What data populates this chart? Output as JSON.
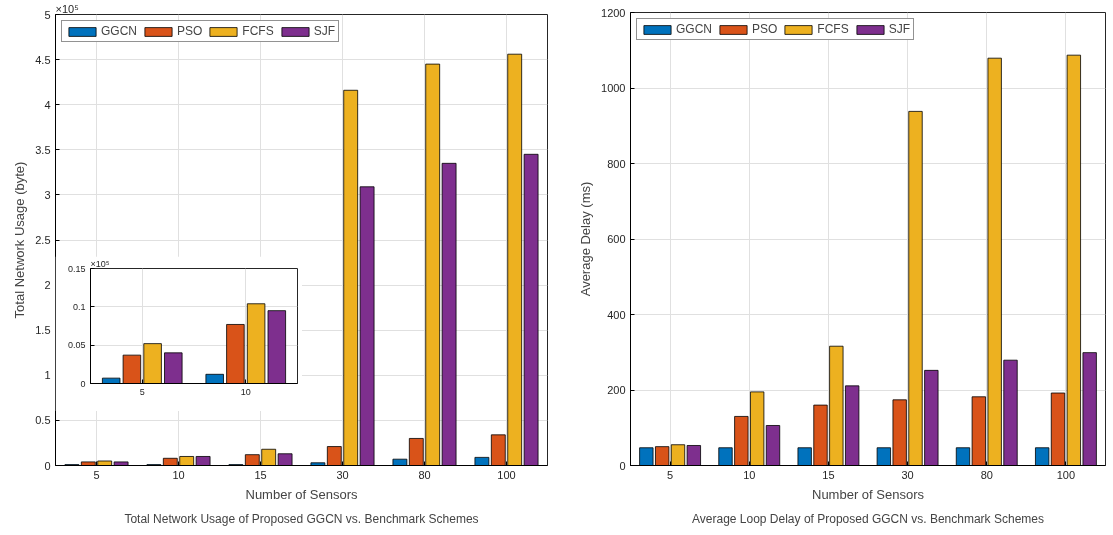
{
  "chart_data": [
    {
      "type": "bar",
      "title": "Total Network Usage of Proposed GGCN vs. Benchmark Schemes",
      "xlabel": "Number of Sensors",
      "ylabel": "Total Network Usage (byte)",
      "annotations": [
        "×10⁵"
      ],
      "categories": [
        "5",
        "10",
        "15",
        "30",
        "80",
        "100"
      ],
      "ylim": [
        0,
        5
      ],
      "yticks": [
        0,
        0.5,
        1,
        1.5,
        2,
        2.5,
        3,
        3.5,
        4,
        4.5,
        5
      ],
      "grid": true,
      "legend": "top left",
      "series": [
        {
          "name": "GGCN",
          "color": "#0072bd",
          "values": [
            0.01,
            0.01,
            0.01,
            0.03,
            0.07,
            0.09
          ]
        },
        {
          "name": "PSO",
          "color": "#d95319",
          "values": [
            0.04,
            0.08,
            0.12,
            0.21,
            0.3,
            0.34
          ]
        },
        {
          "name": "FCFS",
          "color": "#edb120",
          "values": [
            0.05,
            0.1,
            0.18,
            4.16,
            4.45,
            4.56
          ]
        },
        {
          "name": "SJF",
          "color": "#7e2f8e",
          "values": [
            0.04,
            0.1,
            0.13,
            3.09,
            3.35,
            3.45
          ]
        }
      ]
    },
    {
      "type": "bar",
      "title": "Average Loop Delay of Proposed GGCN vs. Benchmark Schemes",
      "xlabel": "Number of Sensors",
      "ylabel": "Average Delay (ms)",
      "categories": [
        "5",
        "10",
        "15",
        "30",
        "80",
        "100"
      ],
      "ylim": [
        0,
        1200
      ],
      "yticks": [
        0,
        200,
        400,
        600,
        800,
        1000,
        1200
      ],
      "grid": true,
      "legend": "top left",
      "series": [
        {
          "name": "GGCN",
          "color": "#0072bd",
          "values": [
            47,
            47,
            47,
            47,
            47,
            47
          ]
        },
        {
          "name": "PSO",
          "color": "#d95319",
          "values": [
            50,
            130,
            160,
            174,
            182,
            192
          ]
        },
        {
          "name": "FCFS",
          "color": "#edb120",
          "values": [
            55,
            195,
            316,
            938,
            1079,
            1087
          ]
        },
        {
          "name": "SJF",
          "color": "#7e2f8e",
          "values": [
            53,
            106,
            211,
            252,
            279,
            299
          ]
        }
      ]
    },
    {
      "type": "bar",
      "annotations": [
        "×10⁵"
      ],
      "categories": [
        "5",
        "10"
      ],
      "ylim": [
        0,
        0.15
      ],
      "yticks": [
        0,
        0.05,
        0.1,
        0.15
      ],
      "grid": true,
      "series": [
        {
          "color": "#0072bd",
          "values": [
            0.007,
            0.012
          ]
        },
        {
          "color": "#d95319",
          "values": [
            0.037,
            0.077
          ]
        },
        {
          "color": "#edb120",
          "values": [
            0.052,
            0.104
          ]
        },
        {
          "color": "#7e2f8e",
          "values": [
            0.04,
            0.095
          ]
        }
      ]
    }
  ]
}
